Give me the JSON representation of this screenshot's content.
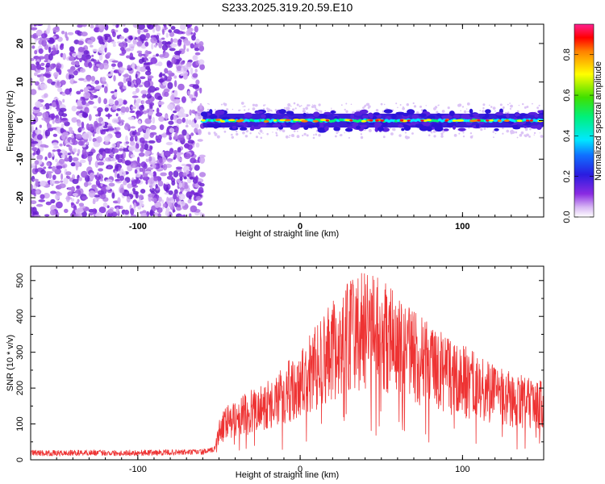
{
  "title": "S233.2025.319.20.59.E10",
  "colors": {
    "snr_line": "#ee3333",
    "axis": "#000000",
    "background": "#ffffff"
  },
  "chart_data": [
    {
      "type": "heatmap",
      "xlabel": "Height of straight line (km)",
      "ylabel": "Frequency (Hz)",
      "xlim": [
        -166,
        150
      ],
      "ylim": [
        -25,
        25
      ],
      "x_ticks": [
        -100,
        0,
        100
      ],
      "x_tick_labels": [
        "-100",
        "0",
        "100"
      ],
      "y_ticks": [
        -20,
        -10,
        0,
        10,
        20
      ],
      "y_tick_labels": [
        "-20",
        "-10",
        "0",
        "10",
        "20"
      ],
      "noise_region_x": [
        -166,
        -60
      ],
      "signal_band": {
        "x_start": -60,
        "x_end": 150,
        "center_freq": 0,
        "width_hz": 3,
        "peak_amplitude": 0.95
      },
      "colorbar": {
        "label": "Normalized spectral amplitude",
        "range": [
          0,
          0.95
        ],
        "ticks": [
          0,
          0.2,
          0.4,
          0.6,
          0.8
        ],
        "tick_labels": [
          "0.0",
          "0.2",
          "0.4",
          "0.6",
          "0.8"
        ],
        "colormap": "rainbow"
      },
      "grid": false
    },
    {
      "type": "line",
      "xlabel": "Height of straight line (km)",
      "ylabel": "SNR (10 * v/v)",
      "xlim": [
        -166,
        150
      ],
      "ylim": [
        0,
        540
      ],
      "x_ticks": [
        -100,
        0,
        100
      ],
      "x_tick_labels": [
        "-100",
        "0",
        "100"
      ],
      "y_ticks": [
        0,
        100,
        200,
        300,
        400,
        500
      ],
      "y_tick_labels": [
        "0",
        "100",
        "200",
        "300",
        "400",
        "500"
      ],
      "series": [
        {
          "x": [
            -166,
            -150,
            -130,
            -110,
            -90,
            -70,
            -60,
            -55,
            -52,
            -50,
            -45,
            -40,
            -30,
            -20,
            -10,
            0,
            10,
            20,
            30,
            40,
            45,
            50,
            60,
            70,
            80,
            90,
            100,
            110,
            120,
            130,
            140,
            150
          ],
          "y": [
            20,
            18,
            20,
            19,
            20,
            21,
            22,
            25,
            35,
            80,
            110,
            120,
            140,
            160,
            190,
            220,
            270,
            320,
            360,
            380,
            385,
            370,
            330,
            300,
            270,
            250,
            230,
            210,
            190,
            175,
            165,
            160
          ]
        }
      ],
      "grid": false
    }
  ]
}
